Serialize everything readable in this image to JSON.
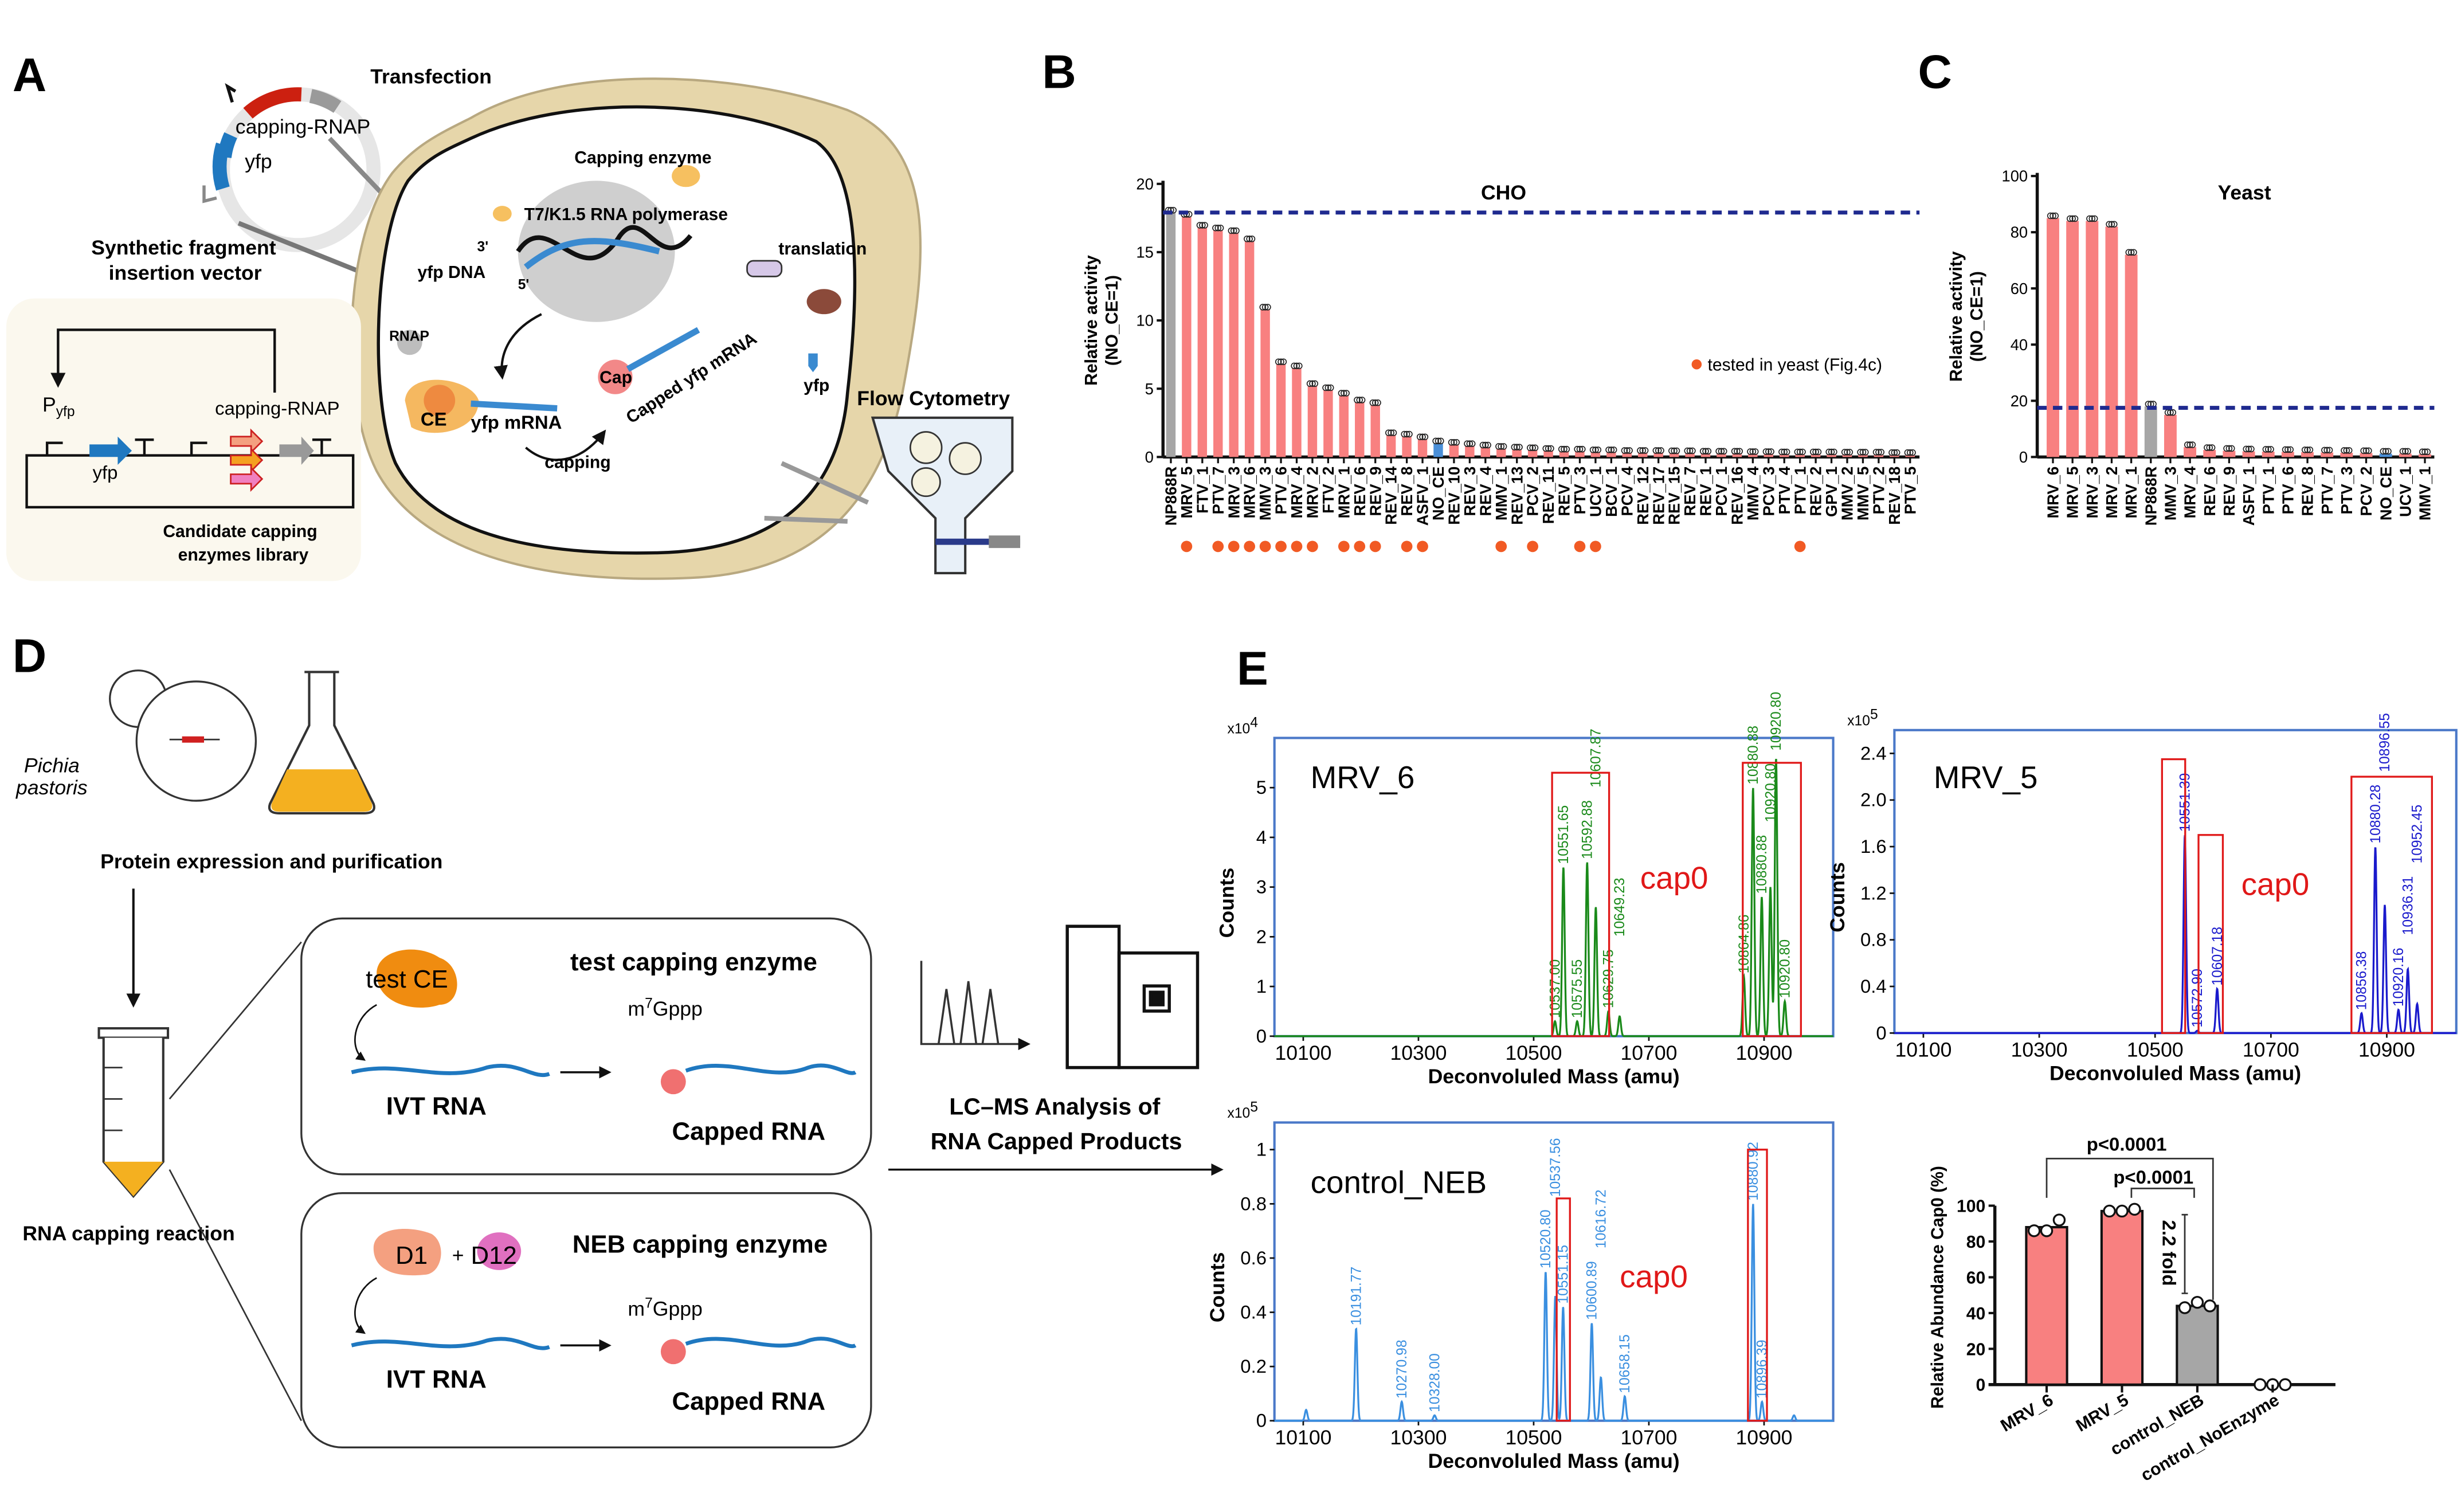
{
  "panel_labels": {
    "a": "A",
    "b": "B",
    "c": "C",
    "d": "D",
    "e": "E"
  },
  "panel_a": {
    "transfection": "Transfection",
    "plasmid_capping_rnap": "capping-RNAP",
    "plasmid_yfp": "yfp",
    "vector_title_1": "Synthetic fragment",
    "vector_title_2": "insertion vector",
    "promoter_p": "P",
    "promoter_sub": "yfp",
    "circuit_yfp": "yfp",
    "circuit_capping_rnap": "capping-RNAP",
    "library_1": "Candidate capping",
    "library_2": "enzymes library",
    "capping_enzyme": "Capping enzyme",
    "polymerase": "T7/K1.5 RNA polymerase",
    "yfp_dna": "yfp DNA",
    "three_prime": "3'",
    "five_prime": "5'",
    "rnap": "RNAP",
    "ce": "CE",
    "yfp_mrna": "yfp mRNA",
    "cap": "Cap",
    "capped_yfp_mrna": "Capped yfp mRNA",
    "capping": "capping",
    "translation": "translation",
    "yfp_protein": "yfp",
    "flow_cytometry": "Flow Cytometry"
  },
  "panel_d": {
    "species_1": "Pichia",
    "species_2": "pastoris",
    "expression": "Protein expression and purification",
    "reaction": "RNA capping reaction",
    "test_box": {
      "enzyme": "test CE",
      "title": "test capping enzyme",
      "substrate": "IVT RNA",
      "cap_prefix": "m",
      "cap_sup": "7",
      "cap_suffix": "Gppp",
      "product": "Capped RNA"
    },
    "neb_box": {
      "enzyme_1": "D1",
      "plus": "+",
      "enzyme_2": "D12",
      "title": "NEB capping enzyme",
      "substrate": "IVT RNA",
      "cap_prefix": "m",
      "cap_sup": "7",
      "cap_suffix": "Gppp",
      "product": "Capped RNA"
    },
    "lcms_1": "LC–MS Analysis of",
    "lcms_2": "RNA Capped Products"
  },
  "colors": {
    "bar_candidate": "#f88080",
    "bar_control": "#a6a6a6",
    "bar_no_ce": "#4a8fd8",
    "threshold_line": "#1f2a8f",
    "yeast_dot": "#f15a24",
    "spectrum_mrv6": "#1a8a1a",
    "spectrum_mrv5": "#1a1acc",
    "spectrum_neb": "#3a8fe0",
    "cap0_box": "#e01818",
    "cell_wall": "#e6d6aa"
  },
  "chart_data": [
    {
      "id": "B",
      "type": "bar",
      "title": "CHO",
      "ylabel": "Relative activity\n(NO_CE=1)",
      "ylabel_1": "Relative activity",
      "ylabel_2": "(NO_CE=1)",
      "ylim": [
        0,
        20
      ],
      "yticks": [
        "0",
        "5",
        "10",
        "15",
        "20"
      ],
      "threshold": 17.9,
      "legend": "tested in yeast (Fig.4c)",
      "legend_placement": "right",
      "categories": [
        "NP868R",
        "MRV_5",
        "FTV_1",
        "PTV_7",
        "MRV_3",
        "MRV_6",
        "MMV_3",
        "PTV_6",
        "MRV_4",
        "MRV_2",
        "FTV_2",
        "MRV_1",
        "REV_6",
        "REV_9",
        "REV_14",
        "REV_8",
        "ASFV_1",
        "NO_CE",
        "REV_10",
        "REV_3",
        "REV_4",
        "MMV_1",
        "REV_13",
        "PCV_2",
        "REV_11",
        "REV_5",
        "PTV_3",
        "UCV_1",
        "BCV_1",
        "PCV_4",
        "REV_12",
        "REV_17",
        "REV_15",
        "REV_7",
        "REV_1",
        "PCV_1",
        "REV_16",
        "MMV_4",
        "PCV_3",
        "PTV_4",
        "PTV_1",
        "REV_2",
        "GPV_1",
        "MMV_2",
        "MMV_5",
        "PTV_2",
        "REV_18",
        "PTV_5"
      ],
      "values": [
        17.9,
        17.6,
        16.8,
        16.6,
        16.4,
        15.8,
        10.8,
        6.8,
        6.5,
        5.2,
        4.9,
        4.5,
        4.0,
        3.8,
        1.6,
        1.5,
        1.3,
        1.0,
        0.9,
        0.8,
        0.7,
        0.6,
        0.55,
        0.5,
        0.45,
        0.4,
        0.4,
        0.35,
        0.35,
        0.3,
        0.3,
        0.3,
        0.28,
        0.28,
        0.25,
        0.25,
        0.25,
        0.22,
        0.22,
        0.2,
        0.2,
        0.2,
        0.2,
        0.18,
        0.18,
        0.18,
        0.15,
        0.15
      ],
      "tested_in_yeast": [
        "MRV_5",
        "PTV_7",
        "MRV_3",
        "MRV_6",
        "MMV_3",
        "PTV_6",
        "MRV_4",
        "MRV_2",
        "MRV_1",
        "REV_6",
        "REV_9",
        "REV_8",
        "ASFV_1",
        "MMV_1",
        "PCV_2",
        "PTV_3",
        "UCV_1",
        "PTV_1"
      ]
    },
    {
      "id": "C",
      "type": "bar",
      "title": "Yeast",
      "ylabel_1": "Relative activity",
      "ylabel_2": "(NO_CE=1)",
      "ylim": [
        0,
        100
      ],
      "yticks": [
        "0",
        "20",
        "40",
        "60",
        "80",
        "100"
      ],
      "threshold": 17.5,
      "categories": [
        "MRV_6",
        "MRV_5",
        "MRV_3",
        "MRV_2",
        "MRV_1",
        "NP868R",
        "MMV_3",
        "MRV_4",
        "REV_6",
        "REV_9",
        "ASFV_1",
        "PTV_1",
        "PTV_6",
        "REV_8",
        "PTV_7",
        "PTV_3",
        "PCV_2",
        "NO_CE",
        "UCV_1",
        "MMV_1"
      ],
      "values": [
        85,
        84,
        84,
        82,
        72,
        18,
        15,
        3.5,
        2.5,
        2.2,
        2.0,
        1.9,
        1.8,
        1.7,
        1.6,
        1.5,
        1.4,
        1.2,
        1.2,
        1.0
      ]
    },
    {
      "id": "E-bar",
      "type": "bar",
      "ylabel": "Relative Abundance Cap0 (%)",
      "ylim": [
        0,
        100
      ],
      "yticks": [
        "0",
        "20",
        "40",
        "60",
        "80",
        "100"
      ],
      "categories": [
        "MRV_6",
        "MRV_5",
        "control_NEB",
        "control_NoEnzyme"
      ],
      "values": [
        88,
        97,
        44,
        0
      ],
      "replicates": [
        [
          86,
          86,
          92
        ],
        [
          97,
          97,
          98
        ],
        [
          43,
          46,
          44
        ],
        [
          0,
          0,
          0
        ]
      ],
      "annotations": {
        "p_outer": "p<0.0001",
        "p_inner": "p<0.0001",
        "fold": "2.2 fold"
      }
    }
  ],
  "spectra": [
    {
      "id": "mrv6",
      "title": "MRV_6",
      "scale_base": "x10",
      "scale_exp": "4",
      "ylabel": "Counts",
      "xlabel": "Deconvoluled Mass (amu)",
      "xlim": [
        10050,
        11020
      ],
      "ylim": [
        0,
        6
      ],
      "xticks": [
        "10100",
        "10300",
        "10500",
        "10700",
        "10900"
      ],
      "yticks": [
        "0",
        "1",
        "2",
        "3",
        "4",
        "5"
      ],
      "cap0_label": "cap0",
      "cap0_boxes": [
        [
          10532,
          10631,
          5.3
        ],
        [
          10863,
          10964,
          5.5
        ]
      ],
      "peaks": [
        {
          "m": 10537.0,
          "h": 0.3,
          "label": "10537.00"
        },
        {
          "m": 10551.65,
          "h": 3.4,
          "label": "10551.65"
        },
        {
          "m": 10575.55,
          "h": 0.3,
          "label": "10575.55"
        },
        {
          "m": 10592.88,
          "h": 3.5,
          "label": "10592.88"
        },
        {
          "m": 10607.87,
          "h": 2.6,
          "label": "10607.87"
        },
        {
          "m": 10629.75,
          "h": 0.5,
          "label": "10629.75"
        },
        {
          "m": 10649.23,
          "h": 0.4,
          "label": "10649.23"
        },
        {
          "m": 10864.86,
          "h": 1.2,
          "label": "10864.86"
        },
        {
          "m": 10880.88,
          "h": 5.0,
          "label": "10880.88"
        },
        {
          "m": 10896.0,
          "h": 2.8,
          "label": "10880.88"
        },
        {
          "m": 10911.0,
          "h": 3.0,
          "label": "10920.80"
        },
        {
          "m": 10920.8,
          "h": 5.6,
          "label": "10920.80"
        },
        {
          "m": 10936.0,
          "h": 0.7,
          "label": "10920.80"
        }
      ]
    },
    {
      "id": "mrv5",
      "title": "MRV_5",
      "scale_base": "x10",
      "scale_exp": "5",
      "ylabel": "Counts",
      "xlabel": "Deconvoluled Mass (amu)",
      "xlim": [
        10050,
        11020
      ],
      "ylim": [
        0,
        2.6
      ],
      "xticks": [
        "10100",
        "10300",
        "10500",
        "10700",
        "10900"
      ],
      "yticks": [
        "0",
        "0.4",
        "0.8",
        "1.2",
        "1.6",
        "2.0",
        "2.4"
      ],
      "cap0_label": "cap0",
      "cap0_boxes": [
        [
          10512,
          10552,
          2.35
        ],
        [
          10575,
          10617,
          1.7
        ],
        [
          10839,
          10978,
          2.2
        ]
      ],
      "peaks": [
        {
          "m": 10551.39,
          "h": 1.7,
          "label": "10551.39"
        },
        {
          "m": 10572.9,
          "h": 0.02,
          "label": "10572.90"
        },
        {
          "m": 10607.18,
          "h": 0.38,
          "label": "10607.18"
        },
        {
          "m": 10856.38,
          "h": 0.17,
          "label": "10856.38"
        },
        {
          "m": 10880.28,
          "h": 1.6,
          "label": "10880.28"
        },
        {
          "m": 10896.55,
          "h": 1.1,
          "label": "10896.55"
        },
        {
          "m": 10920.16,
          "h": 0.2,
          "label": "10920.16"
        },
        {
          "m": 10936.31,
          "h": 0.55,
          "label": "10936.31"
        },
        {
          "m": 10952.45,
          "h": 0.25,
          "label": "10952.45"
        }
      ]
    },
    {
      "id": "neb",
      "title": "control_NEB",
      "scale_base": "x10",
      "scale_exp": "5",
      "ylabel": "Counts",
      "xlabel": "Deconvoluled Mass (amu)",
      "xlim": [
        10050,
        11020
      ],
      "ylim": [
        0,
        1.1
      ],
      "xticks": [
        "10100",
        "10300",
        "10500",
        "10700",
        "10900"
      ],
      "yticks": [
        "0",
        "0.2",
        "0.4",
        "0.6",
        "0.8",
        "1"
      ],
      "cap0_label": "cap0",
      "cap0_boxes": [
        [
          10540,
          10563,
          0.82
        ],
        [
          10872,
          10905,
          1.0
        ]
      ],
      "peaks": [
        {
          "m": 10105.0,
          "h": 0.04,
          "label": ""
        },
        {
          "m": 10191.77,
          "h": 0.34,
          "label": "10191.77"
        },
        {
          "m": 10270.98,
          "h": 0.07,
          "label": "10270.98"
        },
        {
          "m": 10328.0,
          "h": 0.02,
          "label": "10328.00"
        },
        {
          "m": 10520.8,
          "h": 0.55,
          "label": "10520.80"
        },
        {
          "m": 10537.56,
          "h": 0.46,
          "label": "10537.56"
        },
        {
          "m": 10551.15,
          "h": 0.42,
          "label": "10551.15"
        },
        {
          "m": 10600.89,
          "h": 0.36,
          "label": "10600.89"
        },
        {
          "m": 10616.72,
          "h": 0.16,
          "label": "10616.72"
        },
        {
          "m": 10658.15,
          "h": 0.09,
          "label": "10658.15"
        },
        {
          "m": 10880.92,
          "h": 0.8,
          "label": "10880.92"
        },
        {
          "m": 10896.39,
          "h": 0.07,
          "label": "10896.39"
        },
        {
          "m": 10952.0,
          "h": 0.02,
          "label": ""
        }
      ]
    }
  ]
}
